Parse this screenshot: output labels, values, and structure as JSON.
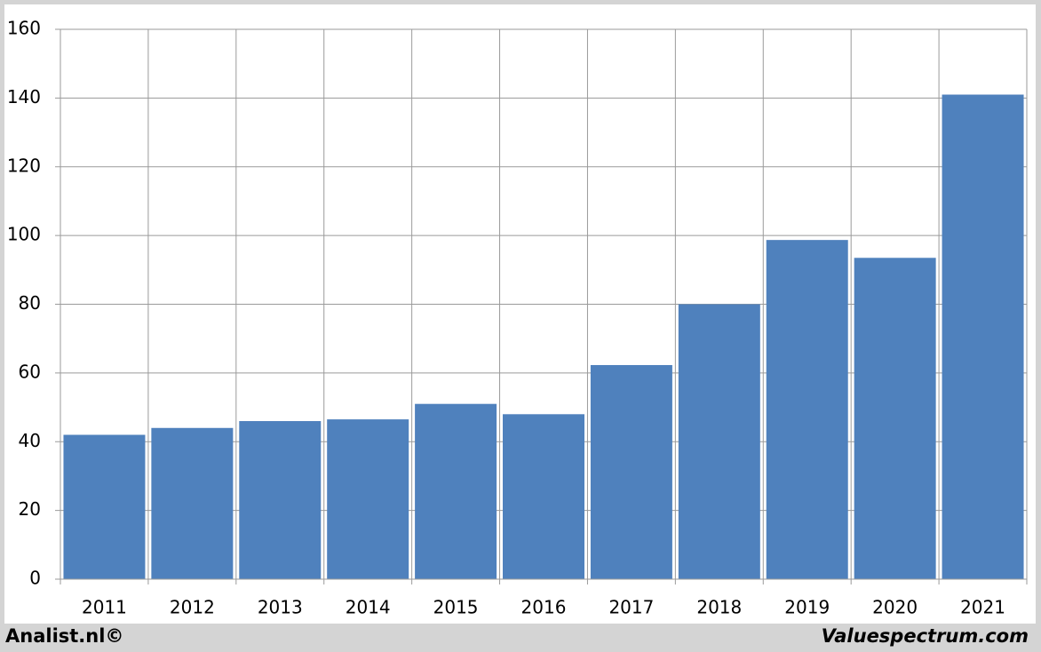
{
  "chart_data": {
    "type": "bar",
    "categories": [
      "2011",
      "2012",
      "2013",
      "2014",
      "2015",
      "2016",
      "2017",
      "2018",
      "2019",
      "2020",
      "2021"
    ],
    "values": [
      42,
      44,
      46,
      46.5,
      51,
      48,
      62.3,
      80,
      98.7,
      93.5,
      141
    ],
    "color": "#4f81bd",
    "ylim": [
      0,
      160
    ],
    "yticks": [
      0,
      20,
      40,
      60,
      80,
      100,
      120,
      140,
      160
    ],
    "grid": true,
    "annotations": [
      "Analist.nl©",
      "Valuespectrum.com"
    ]
  }
}
